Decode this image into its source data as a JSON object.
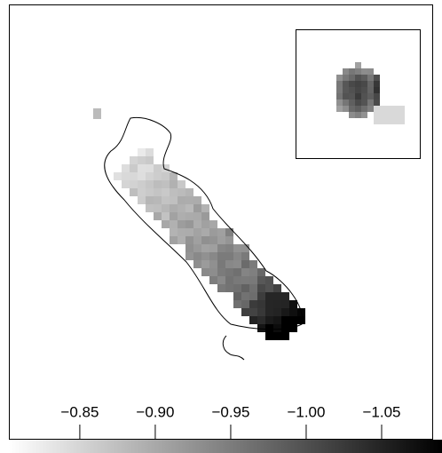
{
  "colorbar": {
    "clim": [
      -0.803,
      -1.09
    ],
    "ticks": [
      {
        "value": -0.85,
        "label": "−0.85"
      },
      {
        "value": -0.9,
        "label": "−0.90"
      },
      {
        "value": -0.95,
        "label": "−0.95"
      },
      {
        "value": -1.0,
        "label": "−1.00"
      },
      {
        "value": -1.05,
        "label": "−1.05"
      }
    ]
  }
}
